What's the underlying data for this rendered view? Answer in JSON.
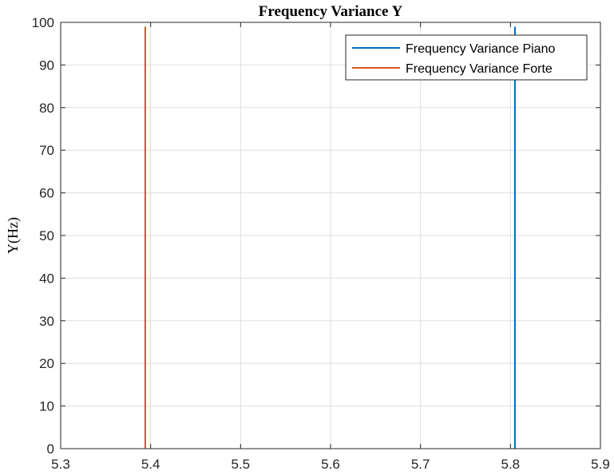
{
  "chart_data": {
    "type": "line",
    "title": "Frequency Variance Y",
    "xlabel": "",
    "ylabel": "Y(Hz)",
    "xlim": [
      5.3,
      5.9
    ],
    "ylim": [
      0,
      100
    ],
    "xticks": [
      "5.3",
      "5.4",
      "5.5",
      "5.6",
      "5.7",
      "5.8",
      "5.9"
    ],
    "yticks": [
      "0",
      "10",
      "20",
      "30",
      "40",
      "50",
      "60",
      "70",
      "80",
      "90",
      "100"
    ],
    "grid": true,
    "legend_position": "top-right",
    "series": [
      {
        "name": "Frequency Variance Piano",
        "color": "#0072BD",
        "x": [
          5.805,
          5.805
        ],
        "y": [
          0,
          99
        ]
      },
      {
        "name": "Frequency Variance Forte",
        "color": "#D95319",
        "x": [
          5.394,
          5.394
        ],
        "y": [
          0,
          99
        ]
      }
    ]
  }
}
